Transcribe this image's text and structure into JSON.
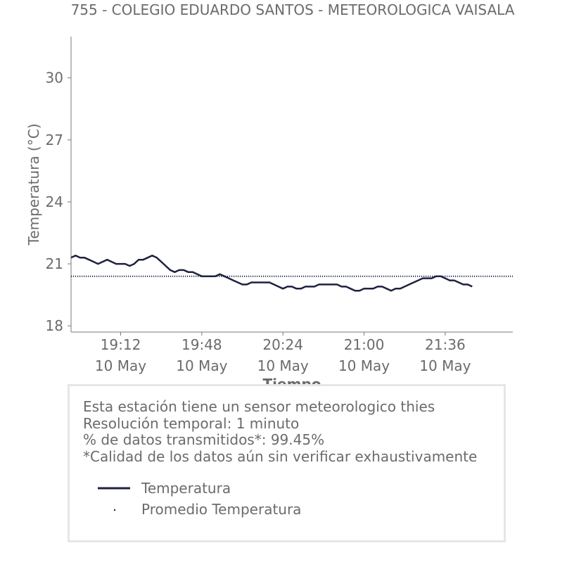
{
  "chart_data": {
    "type": "line",
    "title": "755 - COLEGIO EDUARDO SANTOS - METEOROLOGICA VAISALA",
    "xlabel": "Tiempo",
    "ylabel": "Temperatura (°C)",
    "ylim": [
      17.7,
      32.0
    ],
    "xlim": [
      "18:50",
      "22:06"
    ],
    "yticks": [
      18,
      21,
      24,
      27,
      30
    ],
    "xticks": [
      {
        "value": "19:12",
        "date": "10 May",
        "label": "19:12"
      },
      {
        "value": "19:48",
        "date": "10 May",
        "label": "19:48"
      },
      {
        "value": "20:24",
        "date": "10 May",
        "label": "20:24"
      },
      {
        "value": "21:00",
        "date": "10 May",
        "label": "21:00"
      },
      {
        "value": "21:36",
        "date": "10 May",
        "label": "21:36"
      }
    ],
    "grid": false,
    "series": [
      {
        "name": "Temperatura",
        "style": "line",
        "color": "#1f2142",
        "x": [
          "18:50",
          "18:52",
          "18:54",
          "18:56",
          "18:58",
          "19:00",
          "19:02",
          "19:04",
          "19:06",
          "19:08",
          "19:10",
          "19:12",
          "19:14",
          "19:16",
          "19:18",
          "19:20",
          "19:22",
          "19:24",
          "19:26",
          "19:28",
          "19:30",
          "19:32",
          "19:34",
          "19:36",
          "19:38",
          "19:40",
          "19:42",
          "19:44",
          "19:46",
          "19:48",
          "19:50",
          "19:52",
          "19:54",
          "19:56",
          "19:58",
          "20:00",
          "20:02",
          "20:04",
          "20:06",
          "20:08",
          "20:10",
          "20:12",
          "20:14",
          "20:16",
          "20:18",
          "20:20",
          "20:22",
          "20:24",
          "20:26",
          "20:28",
          "20:30",
          "20:32",
          "20:34",
          "20:36",
          "20:38",
          "20:40",
          "20:42",
          "20:44",
          "20:46",
          "20:48",
          "20:50",
          "20:52",
          "20:54",
          "20:56",
          "20:58",
          "21:00",
          "21:02",
          "21:04",
          "21:06",
          "21:08",
          "21:10",
          "21:12",
          "21:14",
          "21:16",
          "21:18",
          "21:20",
          "21:22",
          "21:24",
          "21:26",
          "21:28",
          "21:30",
          "21:32",
          "21:34",
          "21:36",
          "21:38",
          "21:40",
          "21:42",
          "21:44",
          "21:46",
          "21:48"
        ],
        "values": [
          21.3,
          21.4,
          21.3,
          21.3,
          21.2,
          21.1,
          21.0,
          21.1,
          21.2,
          21.1,
          21.0,
          21.0,
          21.0,
          20.9,
          21.0,
          21.2,
          21.2,
          21.3,
          21.4,
          21.3,
          21.1,
          20.9,
          20.7,
          20.6,
          20.7,
          20.7,
          20.6,
          20.6,
          20.5,
          20.4,
          20.4,
          20.4,
          20.4,
          20.5,
          20.4,
          20.3,
          20.2,
          20.1,
          20.0,
          20.0,
          20.1,
          20.1,
          20.1,
          20.1,
          20.1,
          20.0,
          19.9,
          19.8,
          19.9,
          19.9,
          19.8,
          19.8,
          19.9,
          19.9,
          19.9,
          20.0,
          20.0,
          20.0,
          20.0,
          20.0,
          19.9,
          19.9,
          19.8,
          19.7,
          19.7,
          19.8,
          19.8,
          19.8,
          19.9,
          19.9,
          19.8,
          19.7,
          19.8,
          19.8,
          19.9,
          20.0,
          20.1,
          20.2,
          20.3,
          20.3,
          20.3,
          20.4,
          20.4,
          20.3,
          20.2,
          20.2,
          20.1,
          20.0,
          20.0,
          19.9
        ]
      },
      {
        "name": "Promedio Temperatura",
        "style": "dotted",
        "color": "#1f2142",
        "value": 20.4
      }
    ]
  },
  "info": {
    "lines": [
      "Esta estación tiene un sensor meteorologico thies",
      "Resolución temporal: 1 minuto",
      "% de datos transmitidos*: 99.45%",
      "*Calidad de los datos aún sin verificar exhaustivamente"
    ]
  },
  "legend": [
    {
      "label": "Temperatura",
      "style": "line"
    },
    {
      "label": "Promedio Temperatura",
      "style": "dot"
    }
  ]
}
